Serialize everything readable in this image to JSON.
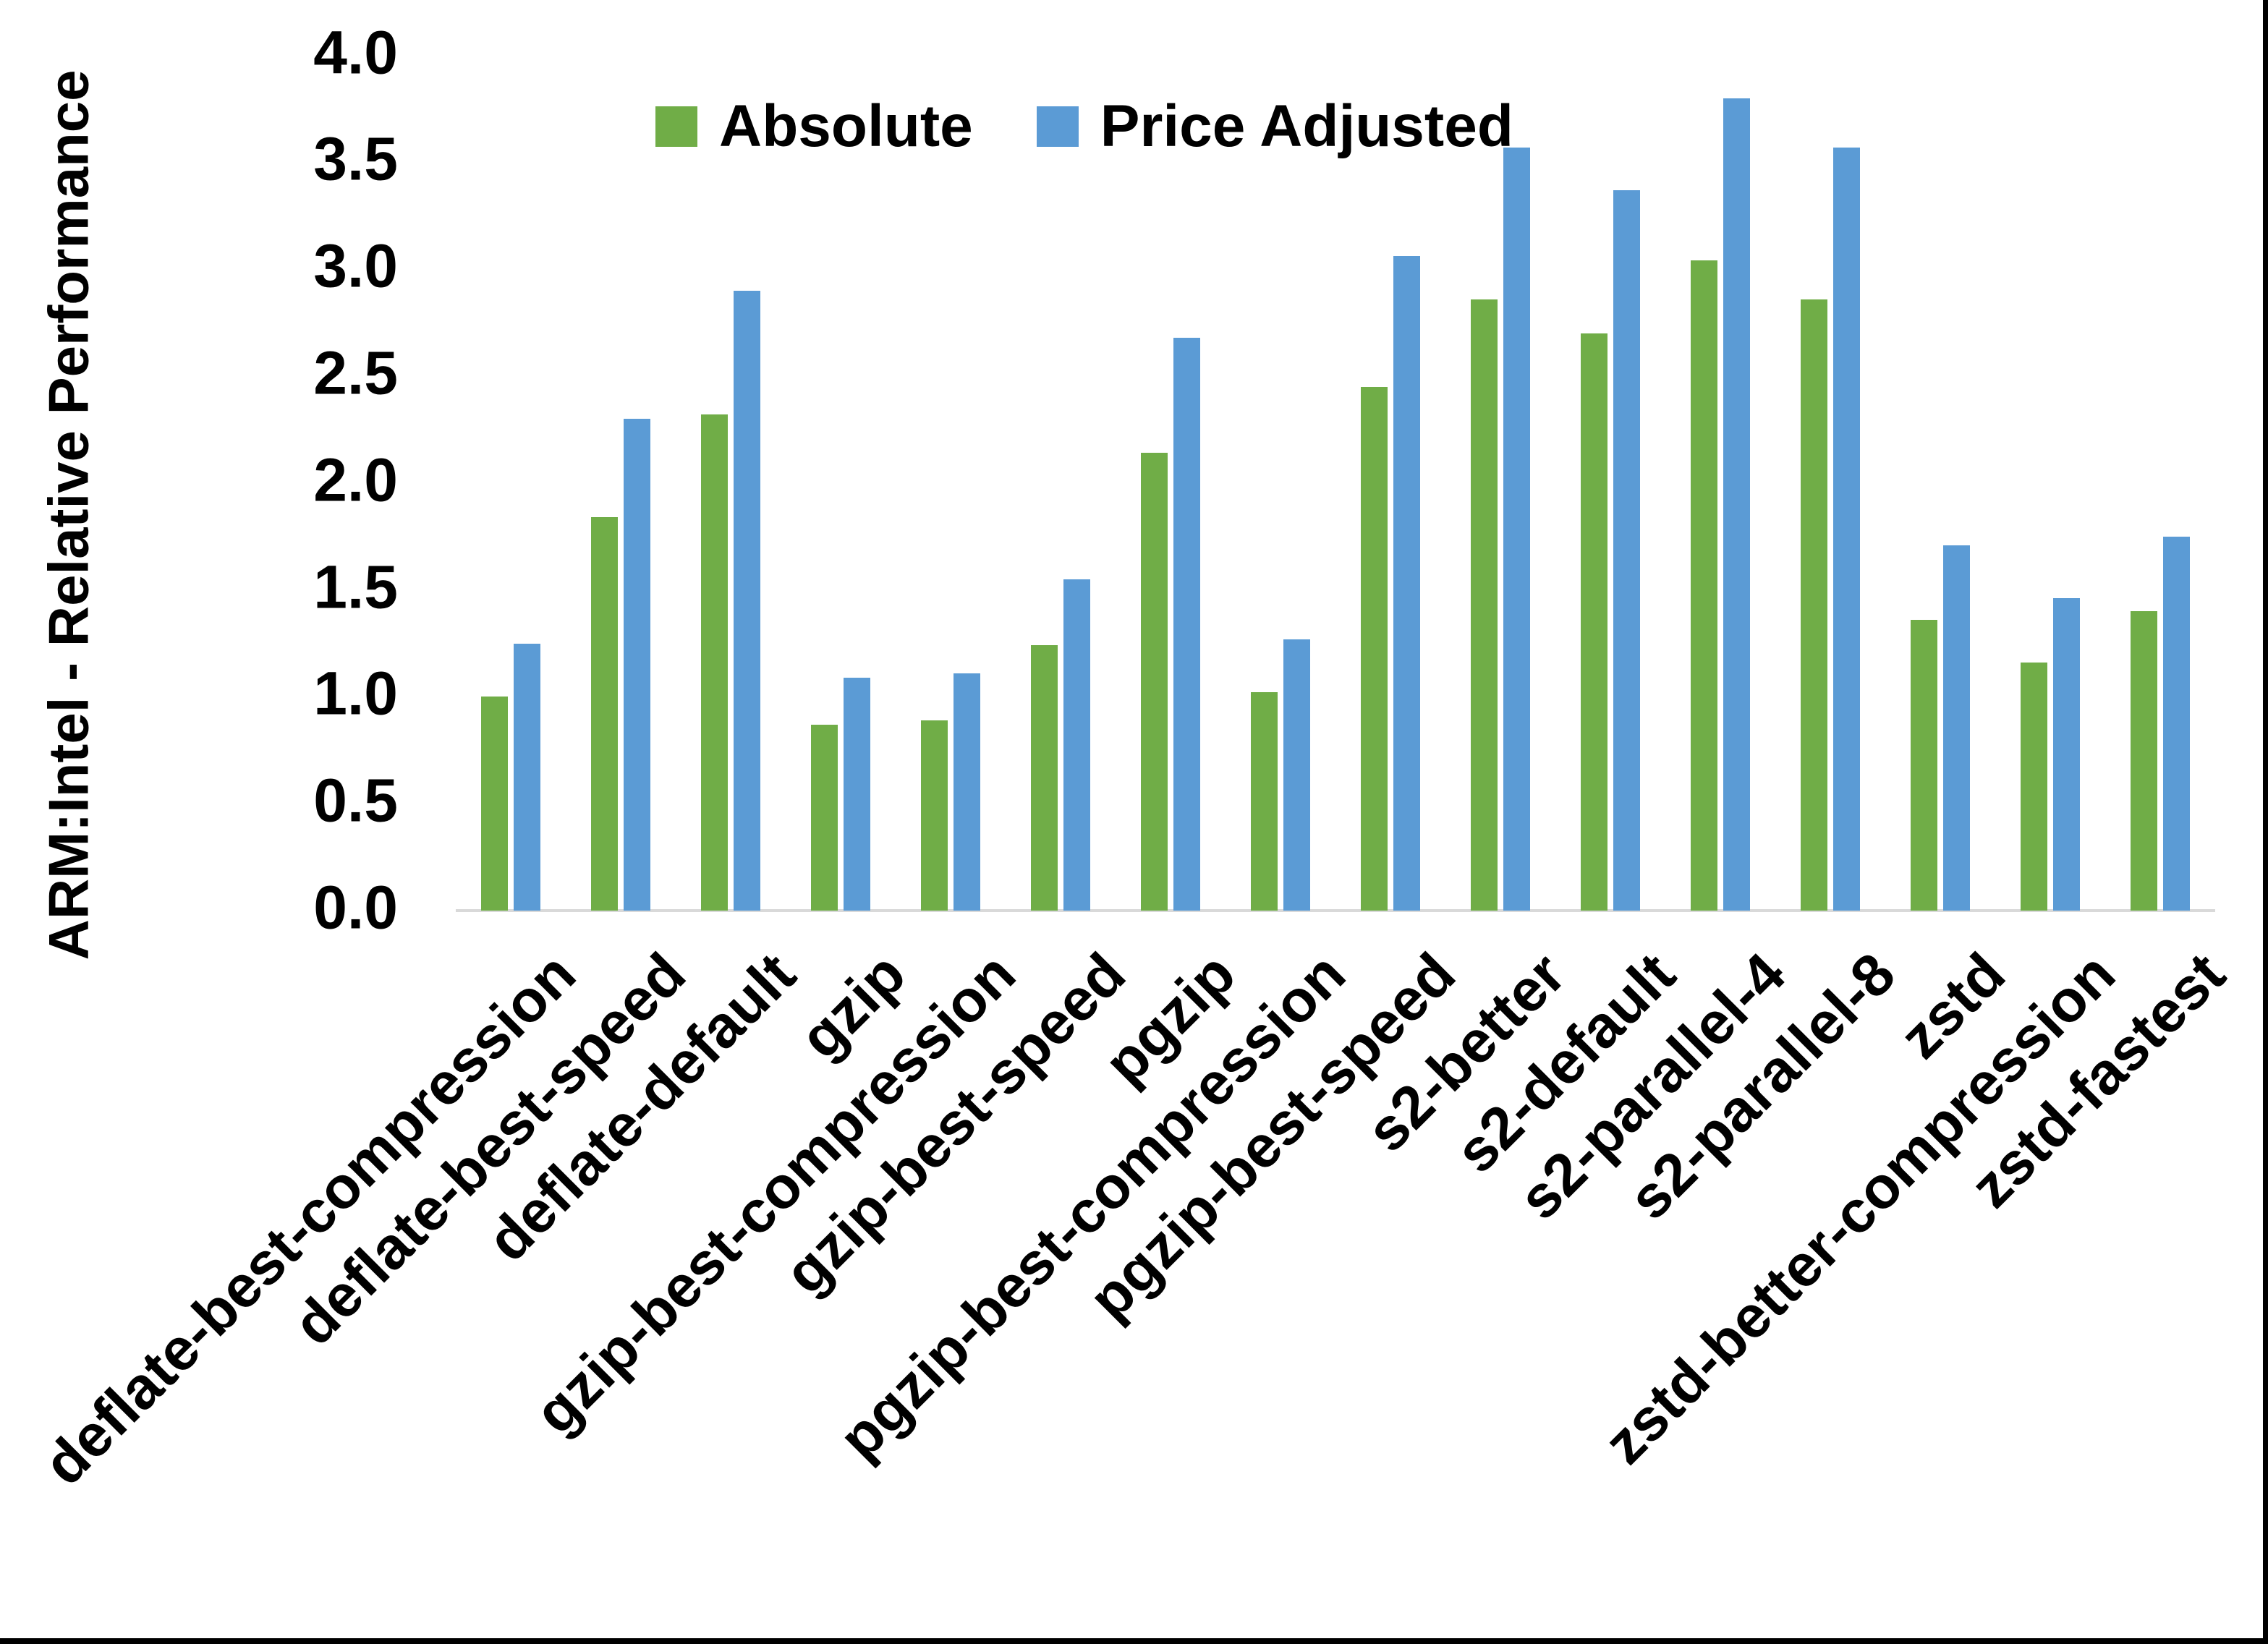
{
  "figure": {
    "background": "#ffffff",
    "axis_line_color": "#d9d9d9",
    "frame_border_color": "#000000",
    "text_color": "#000000"
  },
  "legend": {
    "position": "top-center",
    "items": [
      {
        "label": "Absolute",
        "color": "#70AD47"
      },
      {
        "label": "Price Adjusted",
        "color": "#5B9BD5"
      }
    ]
  },
  "chart_data": {
    "type": "bar",
    "title": "",
    "xlabel": "",
    "ylabel": "ARM:Intel - Relative Performance",
    "ylim": [
      0.0,
      4.0
    ],
    "ytick_step": 0.5,
    "ytick_labels": [
      "0.0",
      "0.5",
      "1.0",
      "1.5",
      "2.0",
      "2.5",
      "3.0",
      "3.5",
      "4.0"
    ],
    "grid": false,
    "legend_position": "top-center",
    "categories": [
      "deflate-best-compression",
      "deflate-best-speed",
      "deflate-default",
      "gzip",
      "gzip-best-compression",
      "gzip-best-speed",
      "pgzip",
      "pgzip-best-compression",
      "pgzip-best-speed",
      "s2-better",
      "s2-default",
      "s2-parallel-4",
      "s2-parallel-8",
      "zstd",
      "zstd-better-compression",
      "zstd-fastest"
    ],
    "series": [
      {
        "name": "Absolute",
        "color": "#70AD47",
        "values": [
          1.0,
          1.84,
          2.32,
          0.87,
          0.89,
          1.24,
          2.14,
          1.02,
          2.45,
          2.86,
          2.7,
          3.04,
          2.86,
          1.36,
          1.16,
          1.4
        ]
      },
      {
        "name": "Price Adjusted",
        "color": "#5B9BD5",
        "values": [
          1.25,
          2.3,
          2.9,
          1.09,
          1.11,
          1.55,
          2.68,
          1.27,
          3.06,
          3.57,
          3.37,
          3.8,
          3.57,
          1.71,
          1.46,
          1.75
        ]
      }
    ]
  }
}
